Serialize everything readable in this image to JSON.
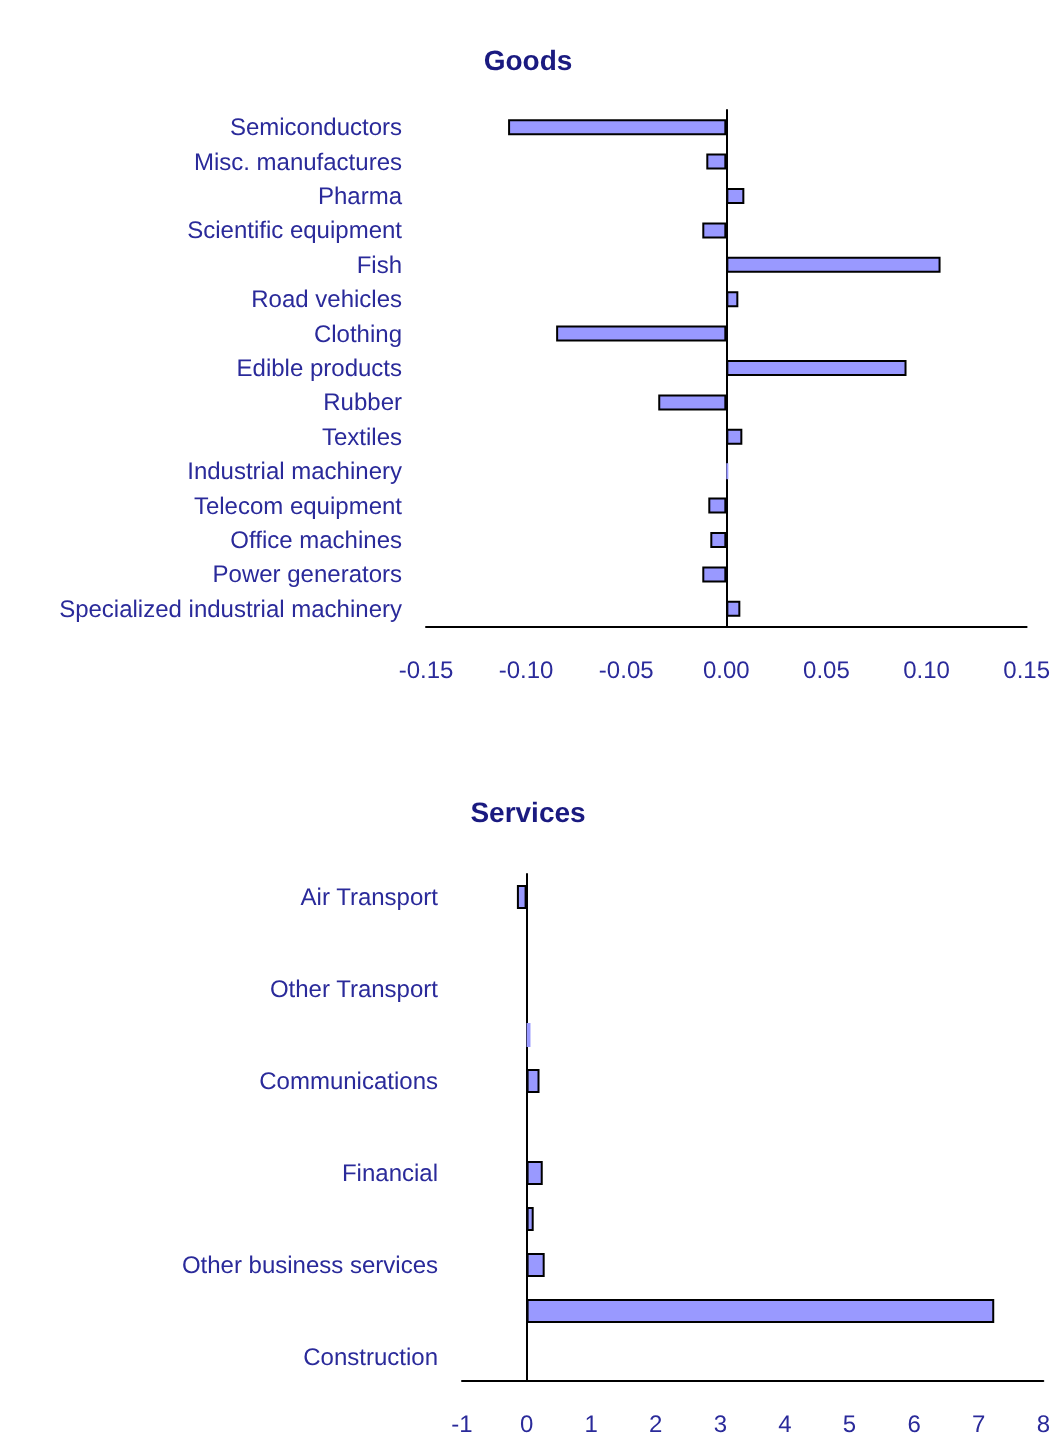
{
  "chart_data": [
    {
      "type": "bar",
      "orientation": "horizontal",
      "title": "Goods",
      "categories": [
        "Semiconductors",
        "Misc. manufactures",
        "Pharma",
        "Scientific equipment",
        "Fish",
        "Road vehicles",
        "Clothing",
        "Edible products",
        "Rubber",
        "Textiles",
        "Industrial machinery",
        "Telecom equipment",
        "Office machines",
        "Power generators",
        "Specialized industrial machinery"
      ],
      "values": [
        -0.109,
        -0.01,
        0.009,
        -0.012,
        0.107,
        0.006,
        -0.085,
        0.09,
        -0.034,
        0.008,
        0.001,
        -0.009,
        -0.008,
        -0.012,
        0.007
      ],
      "color": "#9999ff",
      "xlim": [
        -0.15,
        0.15
      ],
      "xticks": [
        {
          "value": -0.15,
          "label": "-0.15"
        },
        {
          "value": -0.1,
          "label": "-0.10"
        },
        {
          "value": -0.05,
          "label": "-0.05"
        },
        {
          "value": 0,
          "label": "0.00"
        },
        {
          "value": 0.05,
          "label": "0.05"
        },
        {
          "value": 0.1,
          "label": "0.10"
        },
        {
          "value": 0.15,
          "label": "0.15"
        }
      ]
    },
    {
      "type": "bar",
      "orientation": "horizontal",
      "title": "Services",
      "categories": [
        "Air Transport",
        null,
        "Other Transport",
        null,
        "Communications",
        null,
        "Financial",
        null,
        "Other business services",
        null,
        "Construction"
      ],
      "values": [
        -0.15,
        null,
        null,
        0.06,
        0.2,
        null,
        0.25,
        0.11,
        0.28,
        7.24,
        null
      ],
      "color": "#9999ff",
      "xlim": [
        -1,
        8
      ],
      "xticks": [
        -1,
        0,
        1,
        2,
        3,
        4,
        5,
        6,
        7,
        8
      ]
    }
  ]
}
